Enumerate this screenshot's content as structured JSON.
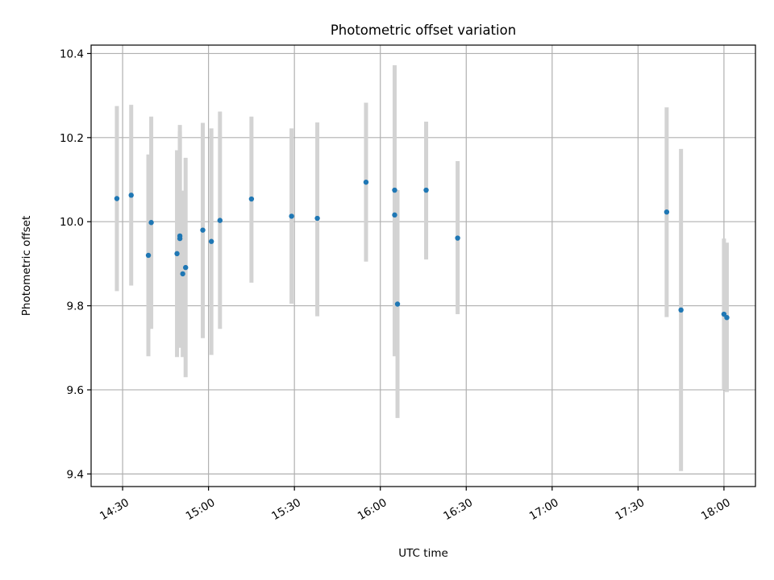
{
  "chart_data": {
    "type": "scatter",
    "title": "Photometric offset variation",
    "xlabel": "UTC time",
    "ylabel": "Photometric offset",
    "x_tick_labels": [
      "14:30",
      "15:00",
      "15:30",
      "16:00",
      "16:30",
      "17:00",
      "17:30",
      "18:00"
    ],
    "x_ticks": [
      "14:30",
      "15:00",
      "15:30",
      "16:00",
      "16:30",
      "17:00",
      "17:30",
      "18:00"
    ],
    "y_ticks": [
      9.4,
      9.6,
      9.8,
      10.0,
      10.2,
      10.4
    ],
    "y_tick_labels": [
      "9.4",
      "9.6",
      "9.8",
      "10.0",
      "10.2",
      "10.4"
    ],
    "xlim": [
      "14:19",
      "18:11"
    ],
    "ylim": [
      9.37,
      10.42
    ],
    "grid": true,
    "legend": "none",
    "colors": {
      "points": "#1f77b4",
      "errorbars": "#d3d3d3"
    },
    "points": [
      {
        "x": "14:28",
        "y": 10.055,
        "ylo": 9.835,
        "yhi": 10.275
      },
      {
        "x": "14:33",
        "y": 10.063,
        "ylo": 9.848,
        "yhi": 10.278
      },
      {
        "x": "14:39",
        "y": 9.92,
        "ylo": 9.68,
        "yhi": 10.16
      },
      {
        "x": "14:40",
        "y": 9.998,
        "ylo": 9.745,
        "yhi": 10.25
      },
      {
        "x": "14:49",
        "y": 9.924,
        "ylo": 9.678,
        "yhi": 10.17
      },
      {
        "x": "14:50",
        "y": 9.966,
        "ylo": 9.7,
        "yhi": 10.23
      },
      {
        "x": "14:50",
        "y": 9.96,
        "ylo": 9.705,
        "yhi": 10.215
      },
      {
        "x": "14:51",
        "y": 9.876,
        "ylo": 9.678,
        "yhi": 10.074
      },
      {
        "x": "14:52",
        "y": 9.891,
        "ylo": 9.63,
        "yhi": 10.152
      },
      {
        "x": "14:58",
        "y": 9.98,
        "ylo": 9.723,
        "yhi": 10.235
      },
      {
        "x": "15:01",
        "y": 9.953,
        "ylo": 9.683,
        "yhi": 10.222
      },
      {
        "x": "15:04",
        "y": 10.003,
        "ylo": 9.745,
        "yhi": 10.262
      },
      {
        "x": "15:15",
        "y": 10.054,
        "ylo": 9.855,
        "yhi": 10.25
      },
      {
        "x": "15:29",
        "y": 10.013,
        "ylo": 9.805,
        "yhi": 10.222
      },
      {
        "x": "15:38",
        "y": 10.008,
        "ylo": 9.775,
        "yhi": 10.236
      },
      {
        "x": "15:55",
        "y": 10.094,
        "ylo": 9.905,
        "yhi": 10.283
      },
      {
        "x": "16:05",
        "y": 10.075,
        "ylo": 9.778,
        "yhi": 10.372
      },
      {
        "x": "16:05",
        "y": 10.016,
        "ylo": 9.68,
        "yhi": 10.35
      },
      {
        "x": "16:06",
        "y": 9.804,
        "ylo": 9.533,
        "yhi": 10.075
      },
      {
        "x": "16:16",
        "y": 10.075,
        "ylo": 9.91,
        "yhi": 10.238
      },
      {
        "x": "16:27",
        "y": 9.961,
        "ylo": 9.78,
        "yhi": 10.144
      },
      {
        "x": "17:40",
        "y": 10.023,
        "ylo": 9.773,
        "yhi": 10.272
      },
      {
        "x": "17:45",
        "y": 9.79,
        "ylo": 9.407,
        "yhi": 10.173
      },
      {
        "x": "18:00",
        "y": 9.78,
        "ylo": 9.6,
        "yhi": 9.96
      },
      {
        "x": "18:01",
        "y": 9.772,
        "ylo": 9.595,
        "yhi": 9.95
      }
    ]
  }
}
